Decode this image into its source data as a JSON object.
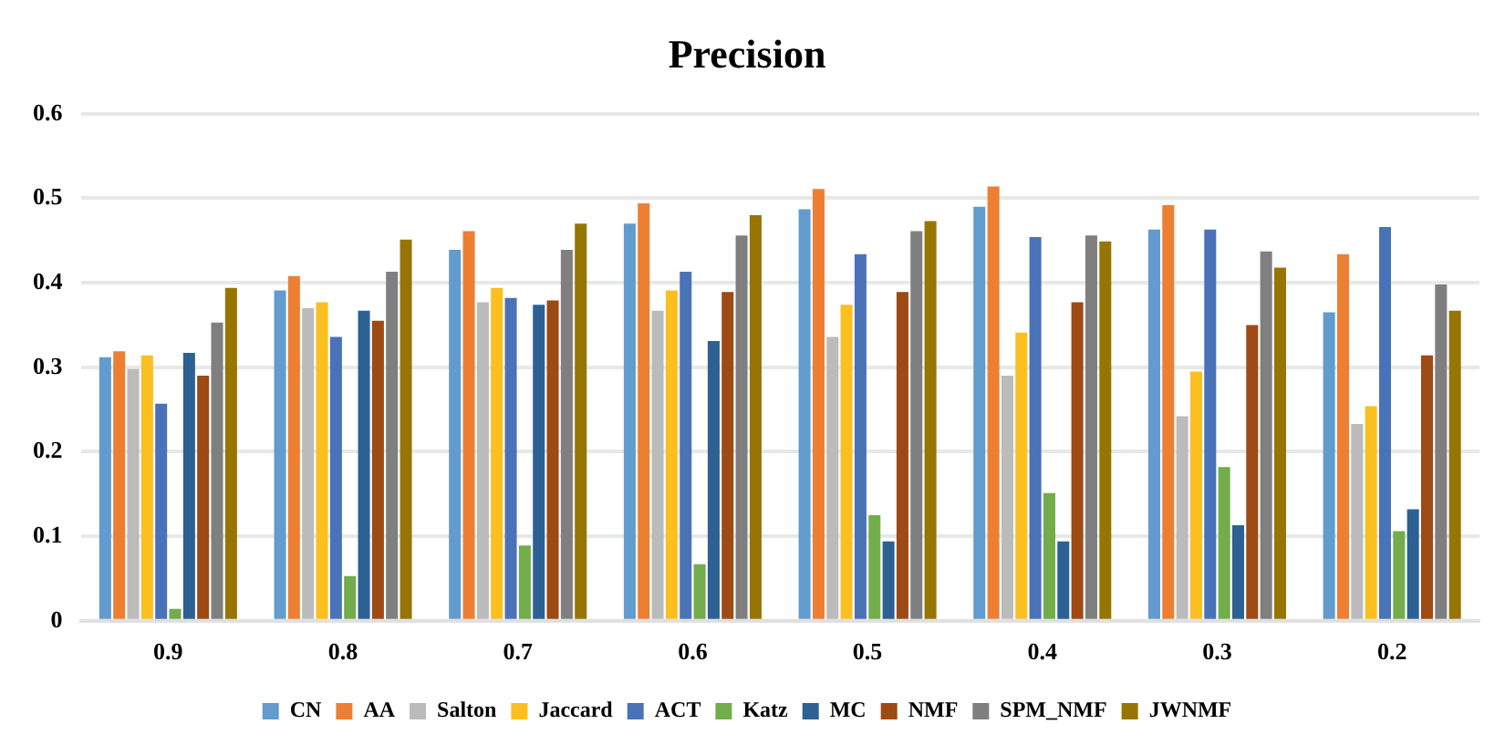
{
  "chart_data": {
    "type": "bar",
    "title": "Precision",
    "categories": [
      "0.9",
      "0.8",
      "0.7",
      "0.6",
      "0.5",
      "0.4",
      "0.3",
      "0.2"
    ],
    "series": [
      {
        "name": "CN",
        "color": "#629bcd",
        "values": [
          0.312,
          0.391,
          0.439,
          0.47,
          0.487,
          0.49,
          0.463,
          0.365
        ]
      },
      {
        "name": "AA",
        "color": "#ed7f33",
        "values": [
          0.319,
          0.408,
          0.461,
          0.494,
          0.511,
          0.514,
          0.492,
          0.434
        ]
      },
      {
        "name": "Salton",
        "color": "#bbbbbb",
        "values": [
          0.298,
          0.37,
          0.377,
          0.367,
          0.336,
          0.29,
          0.242,
          0.233
        ]
      },
      {
        "name": "Jaccard",
        "color": "#fbbf20",
        "values": [
          0.314,
          0.377,
          0.394,
          0.391,
          0.374,
          0.341,
          0.295,
          0.254
        ]
      },
      {
        "name": "ACT",
        "color": "#4a72b8",
        "values": [
          0.257,
          0.336,
          0.382,
          0.413,
          0.434,
          0.454,
          0.463,
          0.466
        ]
      },
      {
        "name": "Katz",
        "color": "#72ac4b",
        "values": [
          0.014,
          0.053,
          0.089,
          0.067,
          0.125,
          0.151,
          0.182,
          0.106
        ]
      },
      {
        "name": "MC",
        "color": "#2d6194",
        "values": [
          0.317,
          0.367,
          0.374,
          0.331,
          0.094,
          0.094,
          0.113,
          0.132
        ]
      },
      {
        "name": "NMF",
        "color": "#9e4a14",
        "values": [
          0.29,
          0.355,
          0.379,
          0.389,
          0.389,
          0.377,
          0.35,
          0.314
        ]
      },
      {
        "name": "SPM_NMF",
        "color": "#7f7f7f",
        "values": [
          0.353,
          0.413,
          0.439,
          0.456,
          0.461,
          0.456,
          0.437,
          0.398
        ]
      },
      {
        "name": "JWNMF",
        "color": "#977503",
        "values": [
          0.394,
          0.451,
          0.47,
          0.48,
          0.473,
          0.449,
          0.418,
          0.367
        ]
      }
    ],
    "ylim": [
      0,
      0.6
    ],
    "yticks": [
      0,
      {
        "value": 0.1,
        "label": "0.1"
      },
      {
        "value": 0.2,
        "label": "0.2"
      },
      {
        "value": 0.3,
        "label": "0.3"
      },
      {
        "value": 0.4,
        "label": "0.4"
      },
      {
        "value": 0.5,
        "label": "0.5"
      },
      {
        "value": 0.6,
        "label": "0.6"
      }
    ],
    "grid": "y",
    "legend": "bottom"
  }
}
